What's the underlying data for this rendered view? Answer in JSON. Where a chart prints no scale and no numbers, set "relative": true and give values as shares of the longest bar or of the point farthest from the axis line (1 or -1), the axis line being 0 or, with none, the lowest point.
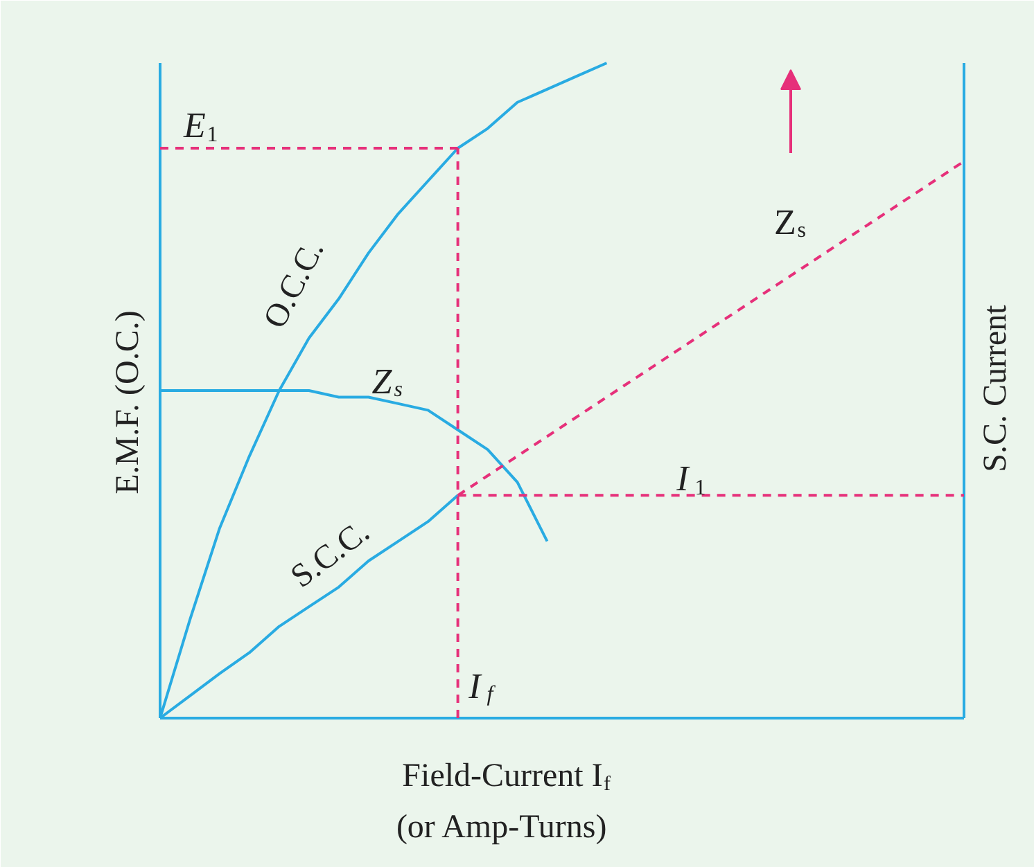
{
  "chart_data": {
    "type": "line",
    "relative": true,
    "marker": "none",
    "xlabel": "Field-Current I$_{f}$\n(or Amp-Turns)",
    "ylabel": "E.M.F. (O.C.)",
    "y2label": "S.C. Current",
    "categories": [
      null,
      null,
      null,
      null,
      null,
      null,
      null,
      null,
      null,
      null,
      null,
      null,
      null,
      null,
      null,
      null,
      null,
      null,
      null,
      null,
      null,
      null,
      null,
      null,
      null,
      null,
      null,
      null
    ],
    "series": [
      {
        "name": "O.C.C.",
        "color": "#29abe2",
        "line_style": "solid",
        "values": [
          0,
          0.15,
          0.29,
          0.4,
          0.5,
          0.58,
          0.64,
          0.71,
          0.77,
          0.82,
          0.87,
          0.9,
          0.94,
          0.96,
          0.98,
          1,
          null,
          null,
          null,
          null,
          null,
          null,
          null,
          null,
          null,
          null,
          null,
          null
        ]
      },
      {
        "name": "Z$_{s}$",
        "color": "#29abe2",
        "line_style": "solid",
        "values": [
          0.5,
          0.5,
          0.5,
          0.5,
          0.5,
          0.5,
          0.49,
          0.49,
          0.48,
          0.47,
          0.44,
          0.41,
          0.36,
          0.27,
          null,
          null,
          null,
          null,
          null,
          null,
          null,
          null,
          null,
          null,
          null,
          null,
          null,
          null
        ]
      },
      {
        "name": "S.C.C.",
        "color": "#29abe2",
        "line_style": "solid",
        "values": [
          0,
          0.034,
          0.068,
          0.1,
          0.14,
          0.17,
          0.2,
          0.24,
          0.27,
          0.3,
          0.34,
          null,
          null,
          null,
          null,
          null,
          null,
          null,
          null,
          null,
          null,
          null,
          null,
          null,
          null,
          null,
          null,
          null
        ]
      },
      {
        "color": "#e6307a",
        "line_style": "dashed",
        "values": [
          null,
          null,
          null,
          null,
          null,
          null,
          null,
          null,
          null,
          null,
          0.34,
          0.37,
          0.4,
          0.43,
          0.46,
          0.49,
          0.52,
          0.55,
          0.58,
          0.61,
          0.64,
          0.67,
          0.7,
          0.73,
          0.76,
          0.79,
          0.82,
          0.85
        ]
      },
      {
        "color": "#e6307a",
        "line_style": "dashed",
        "values": [
          0.87,
          0.87,
          0.87,
          0.87,
          0.87,
          0.87,
          0.87,
          0.87,
          0.87,
          0.87,
          0.87,
          null,
          null,
          null,
          null,
          null,
          null,
          null,
          null,
          null,
          null,
          null,
          null,
          null,
          null,
          null,
          null,
          null
        ]
      },
      {
        "color": "#e6307a",
        "line_style": "dashed",
        "values": [
          null,
          null,
          null,
          null,
          null,
          null,
          null,
          null,
          null,
          null,
          0.34,
          0.34,
          0.34,
          0.34,
          0.34,
          0.34,
          0.34,
          0.34,
          0.34,
          0.34,
          0.34,
          0.34,
          0.34,
          0.34,
          0.34,
          0.34,
          0.34,
          0.34
        ]
      }
    ],
    "annotations": [
      "E$_{1}$",
      "I$_{1}$",
      "Z$_{s}$",
      "I$_{f}$"
    ]
  }
}
